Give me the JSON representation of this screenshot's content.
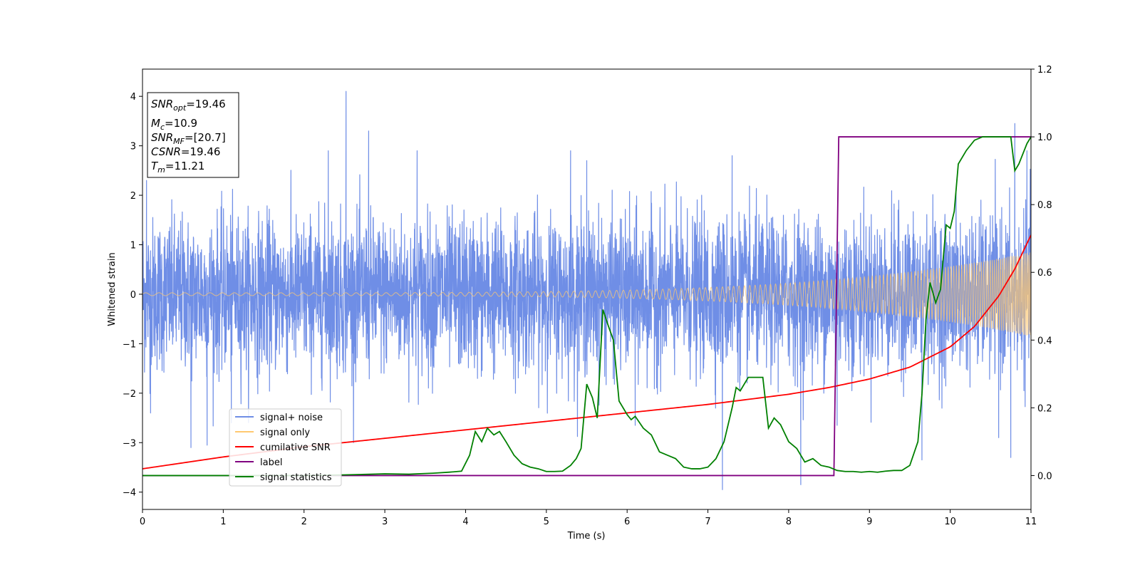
{
  "chart_data": {
    "type": "line",
    "xlabel": "Time (s)",
    "ylabel": "Whitened strain",
    "xlim": [
      0,
      11
    ],
    "ylim_left": [
      -4.35,
      4.55
    ],
    "ylim_right": [
      -0.1,
      1.2
    ],
    "x_ticks": [
      "0",
      "1",
      "2",
      "3",
      "4",
      "5",
      "6",
      "7",
      "8",
      "9",
      "10",
      "11"
    ],
    "y_left_ticks": [
      "−4",
      "−3",
      "−2",
      "−1",
      "0",
      "1",
      "2",
      "3",
      "4"
    ],
    "y_right_ticks": [
      "0.0",
      "0.2",
      "0.4",
      "0.6",
      "0.8",
      "1.0",
      "1.2"
    ],
    "grid": false,
    "legend_position": "lower-left",
    "info_box": {
      "snr_opt": {
        "main": "SNR",
        "sub": "opt",
        "value": "=19.46"
      },
      "m_c": {
        "main": "M",
        "sub": "c",
        "value": "=10.9"
      },
      "snr_mf": {
        "main": "SNR",
        "sub": "MF",
        "value": "=[20.7]"
      },
      "csnr": {
        "main": "CSNR",
        "sub": "",
        "value": "=19.46"
      },
      "t_m": {
        "main": "T",
        "sub": "m",
        "value": "=11.21"
      }
    },
    "series": [
      {
        "name": "signal+ noise",
        "axis": "left",
        "color": "#6f8ee6",
        "kind": "noisy-strain",
        "envelope_mean": 0.9,
        "spike_points": [
          [
            0.05,
            2.3
          ],
          [
            0.1,
            -2.4
          ],
          [
            0.6,
            -3.1
          ],
          [
            0.8,
            -3.05
          ],
          [
            1.1,
            -2.6
          ],
          [
            2.3,
            2.9
          ],
          [
            2.52,
            4.1
          ],
          [
            2.8,
            3.3
          ],
          [
            3.4,
            2.9
          ],
          [
            5.3,
            2.9
          ],
          [
            5.5,
            2.7
          ],
          [
            6.1,
            -2.65
          ],
          [
            7.18,
            -3.95
          ],
          [
            7.3,
            2.8
          ],
          [
            8.15,
            -3.85
          ],
          [
            8.6,
            -2.65
          ],
          [
            9.65,
            -3.35
          ],
          [
            10.6,
            -2.9
          ],
          [
            10.75,
            -3.3
          ],
          [
            10.8,
            3.45
          ],
          [
            10.95,
            2.9
          ]
        ]
      },
      {
        "name": "signal only",
        "axis": "left",
        "color": "#ffc870",
        "kind": "chirp",
        "amplitude_start": 0.03,
        "amplitude_end": 0.85
      },
      {
        "name": "cumilative SNR",
        "axis": "right",
        "color": "#ff0000",
        "x": [
          0,
          1,
          2,
          3,
          4,
          5,
          6,
          7,
          7.5,
          8,
          8.5,
          9,
          9.5,
          10,
          10.3,
          10.6,
          10.8,
          11
        ],
        "y": [
          0.02,
          0.055,
          0.085,
          0.11,
          0.135,
          0.16,
          0.185,
          0.21,
          0.225,
          0.24,
          0.26,
          0.285,
          0.32,
          0.38,
          0.44,
          0.53,
          0.61,
          0.71
        ]
      },
      {
        "name": "label",
        "axis": "right",
        "color": "#800080",
        "x": [
          0,
          8.56,
          8.62,
          11
        ],
        "y": [
          0,
          0,
          1,
          1
        ]
      },
      {
        "name": "signal statistics",
        "axis": "right",
        "color": "#008000",
        "x": [
          0,
          0.5,
          1,
          1.5,
          2,
          2.5,
          3,
          3.3,
          3.6,
          3.8,
          3.95,
          4.05,
          4.12,
          4.2,
          4.27,
          4.35,
          4.42,
          4.5,
          4.6,
          4.7,
          4.8,
          4.9,
          5,
          5.1,
          5.2,
          5.3,
          5.37,
          5.43,
          5.5,
          5.57,
          5.63,
          5.7,
          5.77,
          5.83,
          5.9,
          6,
          6.05,
          6.1,
          6.2,
          6.3,
          6.4,
          6.5,
          6.6,
          6.7,
          6.8,
          6.9,
          7,
          7.1,
          7.2,
          7.3,
          7.35,
          7.4,
          7.5,
          7.6,
          7.68,
          7.75,
          7.82,
          7.9,
          8,
          8.1,
          8.2,
          8.3,
          8.4,
          8.5,
          8.6,
          8.7,
          8.8,
          8.9,
          9,
          9.1,
          9.2,
          9.3,
          9.4,
          9.5,
          9.6,
          9.65,
          9.7,
          9.75,
          9.82,
          9.88,
          9.95,
          10,
          10.05,
          10.1,
          10.2,
          10.3,
          10.4,
          10.5,
          10.6,
          10.7,
          10.75,
          10.8,
          10.85,
          10.95,
          11
        ],
        "y": [
          0,
          0,
          0,
          0,
          0,
          0.002,
          0.005,
          0.004,
          0.007,
          0.01,
          0.013,
          0.06,
          0.13,
          0.1,
          0.14,
          0.12,
          0.13,
          0.1,
          0.06,
          0.035,
          0.025,
          0.02,
          0.012,
          0.012,
          0.013,
          0.03,
          0.05,
          0.08,
          0.27,
          0.23,
          0.17,
          0.49,
          0.44,
          0.4,
          0.22,
          0.18,
          0.165,
          0.175,
          0.14,
          0.12,
          0.07,
          0.06,
          0.05,
          0.025,
          0.02,
          0.02,
          0.025,
          0.05,
          0.1,
          0.2,
          0.26,
          0.25,
          0.29,
          0.29,
          0.29,
          0.14,
          0.17,
          0.15,
          0.1,
          0.08,
          0.04,
          0.05,
          0.03,
          0.025,
          0.015,
          0.012,
          0.012,
          0.01,
          0.012,
          0.01,
          0.013,
          0.015,
          0.015,
          0.03,
          0.1,
          0.24,
          0.46,
          0.57,
          0.51,
          0.55,
          0.74,
          0.73,
          0.78,
          0.92,
          0.96,
          0.99,
          1.0,
          1.0,
          1.0,
          1.0,
          1.0,
          0.9,
          0.92,
          0.98,
          1.0
        ]
      }
    ]
  }
}
